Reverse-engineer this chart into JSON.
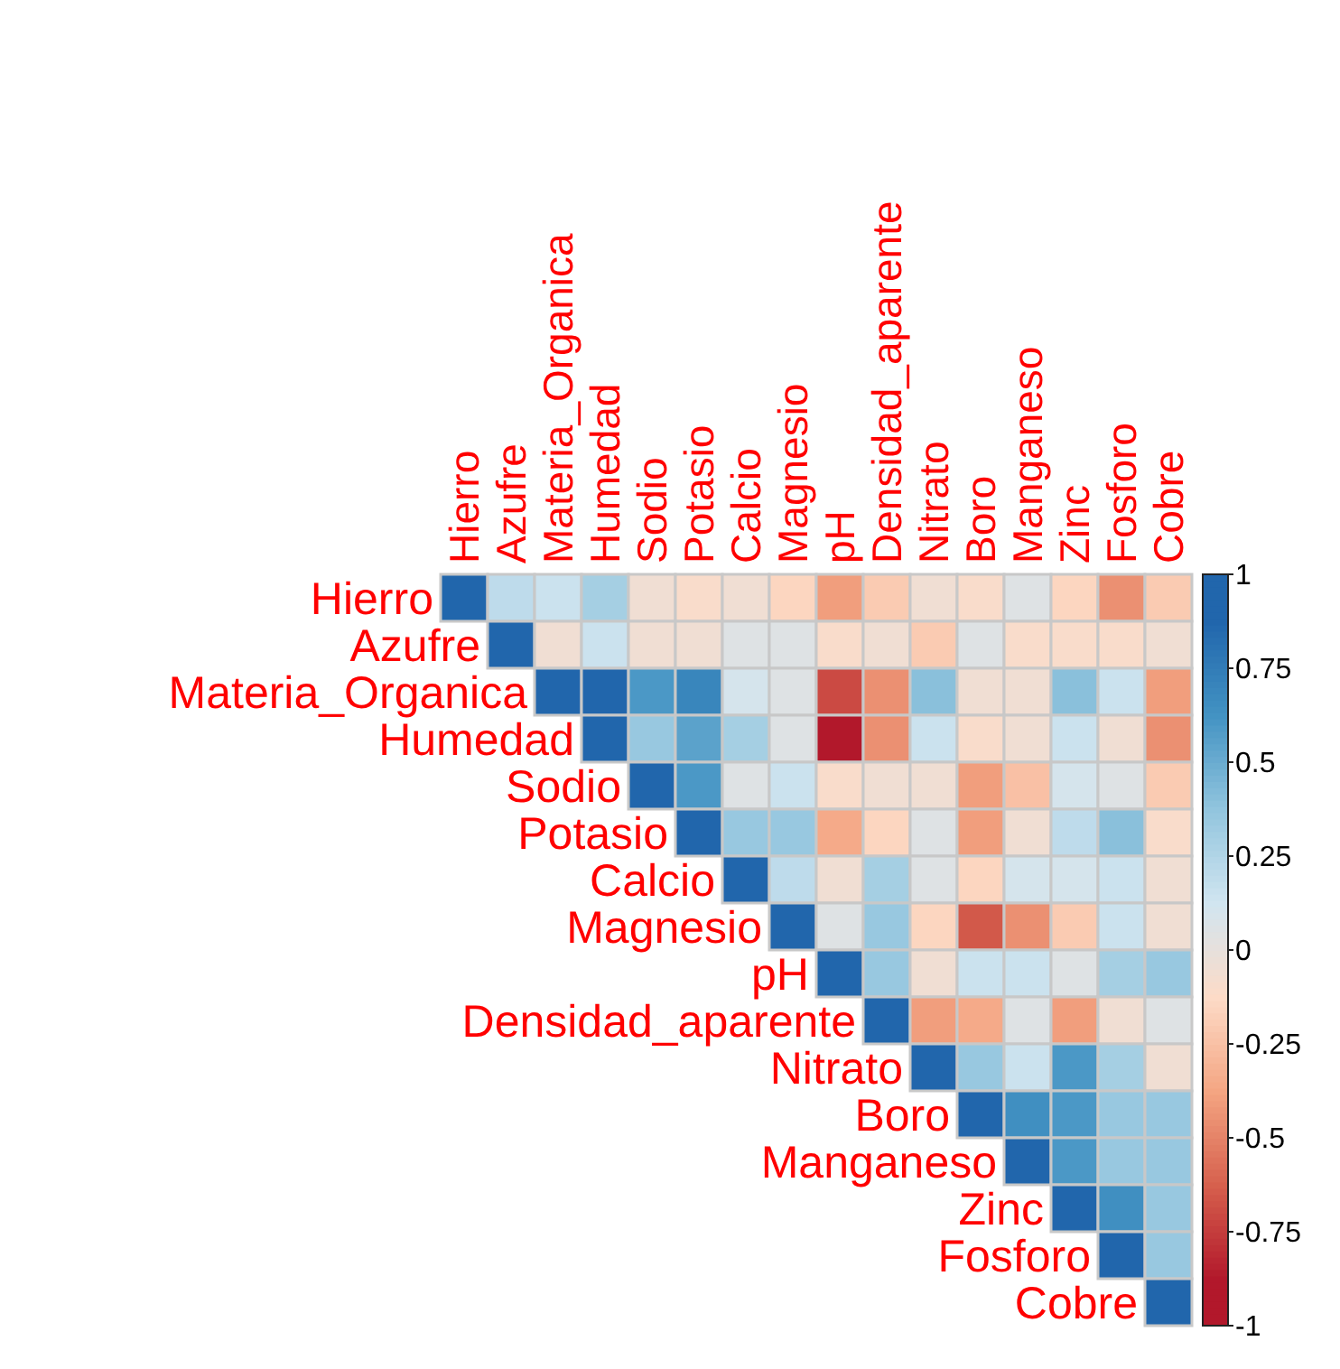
{
  "chart_data": {
    "type": "heatmap",
    "categories": [
      "Hierro",
      "Azufre",
      "Materia_Organica",
      "Humedad",
      "Sodio",
      "Potasio",
      "Calcio",
      "Magnesio",
      "pH",
      "Densidad_aparente",
      "Nitrato",
      "Boro",
      "Manganeso",
      "Zinc",
      "Fosforo",
      "Cobre"
    ],
    "y_categories": [
      "Hierro",
      "Azufre",
      "Materia_Organica",
      "Humedad",
      "Sodio",
      "Potasio",
      "Calcio",
      "Magnesio",
      "pH",
      "Densidad_aparente",
      "Nitrato",
      "Boro",
      "Manganeso",
      "Zinc",
      "Fosforo",
      "Cobre"
    ],
    "cells": [
      [
        1,
        0.2,
        0.15,
        0.3,
        -0.05,
        -0.1,
        -0.05,
        -0.15,
        -0.4,
        -0.2,
        -0.05,
        -0.1,
        0.05,
        -0.15,
        -0.45,
        -0.2
      ],
      [
        null,
        1,
        -0.05,
        0.15,
        -0.05,
        -0.05,
        0.05,
        0.05,
        -0.1,
        -0.05,
        -0.2,
        0.05,
        -0.1,
        -0.1,
        -0.1,
        -0.05
      ],
      [
        null,
        null,
        1,
        0.9,
        0.6,
        0.7,
        0.1,
        0.05,
        -0.7,
        -0.45,
        0.4,
        -0.05,
        -0.05,
        0.4,
        0.15,
        -0.4
      ],
      [
        null,
        null,
        null,
        1,
        0.35,
        0.55,
        0.3,
        0.05,
        -0.95,
        -0.45,
        0.15,
        -0.1,
        -0.05,
        0.15,
        -0.05,
        -0.45
      ],
      [
        null,
        null,
        null,
        null,
        1,
        0.6,
        0.05,
        0.15,
        -0.1,
        -0.05,
        -0.05,
        -0.4,
        -0.25,
        0.1,
        0.05,
        -0.2
      ],
      [
        null,
        null,
        null,
        null,
        null,
        1,
        0.35,
        0.35,
        -0.35,
        -0.15,
        0.05,
        -0.4,
        -0.05,
        0.2,
        0.4,
        -0.1
      ],
      [
        null,
        null,
        null,
        null,
        null,
        null,
        1,
        0.2,
        -0.05,
        0.3,
        0.05,
        -0.15,
        0.1,
        0.1,
        0.15,
        -0.05
      ],
      [
        null,
        null,
        null,
        null,
        null,
        null,
        null,
        1,
        0.05,
        0.35,
        -0.15,
        -0.65,
        -0.45,
        -0.2,
        0.15,
        -0.05
      ],
      [
        null,
        null,
        null,
        null,
        null,
        null,
        null,
        null,
        1,
        0.35,
        -0.05,
        0.15,
        0.15,
        0.05,
        0.3,
        0.35
      ],
      [
        null,
        null,
        null,
        null,
        null,
        null,
        null,
        null,
        null,
        1,
        -0.4,
        -0.35,
        0.05,
        -0.4,
        -0.05,
        0.05
      ],
      [
        null,
        null,
        null,
        null,
        null,
        null,
        null,
        null,
        null,
        null,
        1,
        0.35,
        0.15,
        0.6,
        0.3,
        -0.05
      ],
      [
        null,
        null,
        null,
        null,
        null,
        null,
        null,
        null,
        null,
        null,
        null,
        1,
        0.65,
        0.6,
        0.35,
        0.35
      ],
      [
        null,
        null,
        null,
        null,
        null,
        null,
        null,
        null,
        null,
        null,
        null,
        null,
        1,
        0.6,
        0.35,
        0.35
      ],
      [
        null,
        null,
        null,
        null,
        null,
        null,
        null,
        null,
        null,
        null,
        null,
        null,
        null,
        1,
        0.65,
        0.35
      ],
      [
        null,
        null,
        null,
        null,
        null,
        null,
        null,
        null,
        null,
        null,
        null,
        null,
        null,
        null,
        1,
        0.35
      ],
      [
        null,
        null,
        null,
        null,
        null,
        null,
        null,
        null,
        null,
        null,
        null,
        null,
        null,
        null,
        null,
        1
      ]
    ],
    "clim": [
      -1,
      1
    ],
    "cticks": [
      1,
      0.75,
      0.5,
      0.25,
      0,
      -0.25,
      -0.5,
      -0.75,
      -1
    ],
    "colors": [
      "#b2182b",
      "#d6604d",
      "#f4a582",
      "#fddbc7",
      "#d1e5f0",
      "#92c5de",
      "#4393c3",
      "#2166ac"
    ]
  }
}
